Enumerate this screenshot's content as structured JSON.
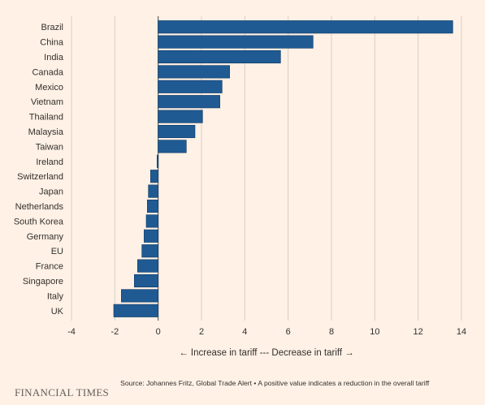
{
  "chart_data": {
    "type": "bar",
    "orientation": "horizontal",
    "categories": [
      "Brazil",
      "China",
      "India",
      "Canada",
      "Mexico",
      "Vietnam",
      "Thailand",
      "Malaysia",
      "Taiwan",
      "Ireland",
      "Switzerland",
      "Japan",
      "Netherlands",
      "South Korea",
      "Germany",
      "EU",
      "France",
      "Singapore",
      "Italy",
      "UK"
    ],
    "values": [
      13.6,
      7.15,
      5.65,
      3.3,
      2.95,
      2.85,
      2.05,
      1.7,
      1.3,
      -0.05,
      -0.35,
      -0.45,
      -0.5,
      -0.55,
      -0.65,
      -0.75,
      -0.95,
      -1.1,
      -1.7,
      -2.05
    ],
    "xlabel": "← Increase in tariff --- Decrease in tariff →",
    "xlim": [
      -4,
      14
    ],
    "xticks": [
      -4,
      -2,
      0,
      2,
      4,
      6,
      8,
      10,
      12,
      14
    ],
    "grid": "vertical",
    "bar_color": "#1f5a93"
  },
  "footer": {
    "brand": "FINANCIAL TIMES",
    "source": "Source: Johannes Fritz, Global Trade Alert • A positive value indicates a reduction in the overall tariff"
  }
}
